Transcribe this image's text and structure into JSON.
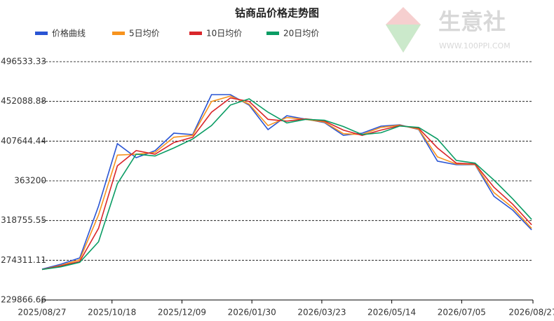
{
  "chart_data": {
    "type": "line",
    "title": "钴商品价格走势图",
    "watermark": {
      "name": "生意社",
      "url": "WWW.100PPI.COM"
    },
    "x": [
      "2025/08/27",
      "2025/09/10",
      "2025/09/24",
      "2025/10/08",
      "2025/10/22",
      "2025/11/05",
      "2025/11/19",
      "2025/12/03",
      "2025/12/17",
      "2025/12/31",
      "2026/01/14",
      "2026/01/28",
      "2026/02/11",
      "2026/02/25",
      "2026/03/11",
      "2026/03/25",
      "2026/04/08",
      "2026/04/22",
      "2026/05/06",
      "2026/05/20",
      "2026/06/03",
      "2026/06/17",
      "2026/07/01",
      "2026/07/15",
      "2026/07/29",
      "2026/08/12",
      "2026/08/26"
    ],
    "xlim": [
      "2025/08/27",
      "2026/08/27"
    ],
    "xticks": [
      "2025/08/27",
      "2025/10/18",
      "2025/12/09",
      "2026/01/30",
      "2026/03/23",
      "2026/05/14",
      "2026/07/05",
      "2026/08/27"
    ],
    "ylim": [
      229866.66,
      496533.33
    ],
    "yticks": [
      229866.66,
      274311.11,
      318755.55,
      363200,
      407644.44,
      452088.88,
      496533.33
    ],
    "grid": true,
    "legend": "top-left",
    "series": [
      {
        "name": "价格曲线",
        "color": "#2a55d4",
        "values": [
          264400,
          269900,
          276900,
          335000,
          404800,
          389100,
          396900,
          416500,
          415000,
          459700,
          459700,
          447900,
          420500,
          436100,
          432200,
          428300,
          414200,
          416500,
          424400,
          425900,
          420500,
          385200,
          381200,
          381200,
          345900,
          330300,
          308300
        ]
      },
      {
        "name": "5日均价",
        "color": "#f7931e",
        "values": [
          264000,
          268500,
          275000,
          325000,
          392000,
          393000,
          395000,
          412000,
          414000,
          452000,
          458000,
          449000,
          425000,
          434000,
          432000,
          429000,
          416000,
          415000,
          423000,
          425500,
          421000,
          390000,
          382000,
          381500,
          350000,
          333000,
          310000
        ]
      },
      {
        "name": "10日均价",
        "color": "#d9262b",
        "values": [
          264000,
          268000,
          273000,
          310000,
          380000,
          397000,
          393000,
          406000,
          412000,
          440000,
          456000,
          452000,
          432000,
          430000,
          432500,
          430000,
          420000,
          414000,
          420000,
          425000,
          422000,
          400000,
          383000,
          382000,
          356000,
          337000,
          314000
        ]
      },
      {
        "name": "20日均价",
        "color": "#0a9c64",
        "values": [
          264000,
          267000,
          272000,
          295000,
          360000,
          393000,
          391000,
          400000,
          410000,
          425000,
          448000,
          455000,
          440000,
          428000,
          432000,
          431000,
          424000,
          415000,
          417000,
          424500,
          423000,
          410000,
          386000,
          383000,
          364000,
          343000,
          320000
        ]
      }
    ]
  }
}
